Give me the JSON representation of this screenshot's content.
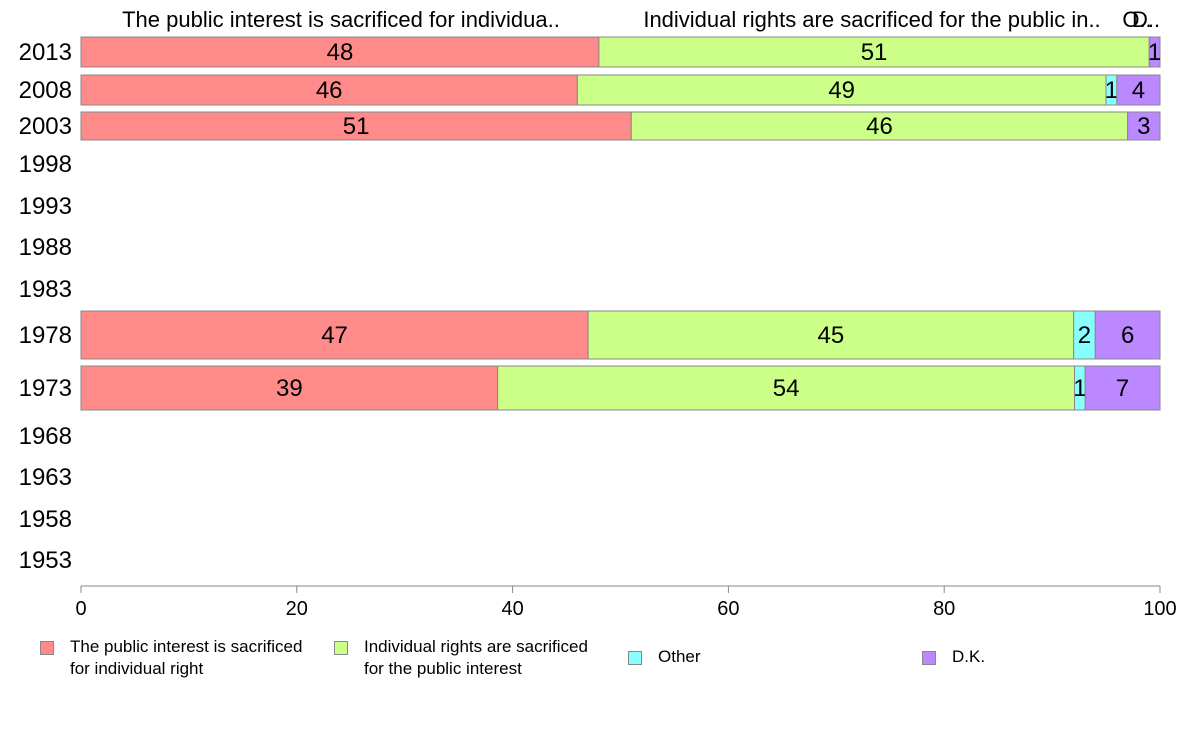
{
  "chart_data": {
    "type": "bar",
    "orientation": "horizontal",
    "stacked": true,
    "categories": [
      "2013",
      "2008",
      "2003",
      "1998",
      "1993",
      "1988",
      "1983",
      "1978",
      "1973",
      "1968",
      "1963",
      "1958",
      "1953"
    ],
    "series": [
      {
        "name": "The public interest is sacrificed for individual right",
        "top_label": "The public interest is sacrificed for individua..",
        "color": "#ff8a8a",
        "values": [
          48,
          46,
          51,
          null,
          null,
          null,
          null,
          47,
          39,
          null,
          null,
          null,
          null
        ]
      },
      {
        "name": "Individual rights are sacrificed for the public interest",
        "top_label": "Individual rights are sacrificed for the public in..",
        "color": "#ccff88",
        "values": [
          51,
          49,
          46,
          null,
          null,
          null,
          null,
          45,
          54,
          null,
          null,
          null,
          null
        ]
      },
      {
        "name": "Other",
        "top_label": "O..",
        "color": "#88ffff",
        "values": [
          0,
          1,
          0,
          null,
          null,
          null,
          null,
          2,
          1,
          null,
          null,
          null,
          null
        ]
      },
      {
        "name": "D.K.",
        "top_label": "D..",
        "color": "#bb88ff",
        "values": [
          1,
          4,
          3,
          null,
          null,
          null,
          null,
          6,
          7,
          null,
          null,
          null,
          null
        ]
      }
    ],
    "data_labels": [
      [
        "48",
        "51",
        "",
        "1"
      ],
      [
        "46",
        "49",
        "1",
        "4"
      ],
      [
        "51",
        "46",
        "",
        "3"
      ],
      null,
      null,
      null,
      null,
      [
        "47",
        "45",
        "2",
        "6"
      ],
      [
        "39",
        "54",
        "1",
        "7"
      ],
      null,
      null,
      null,
      null
    ],
    "xlim": [
      0,
      100
    ],
    "xticks": [
      "0",
      "20",
      "40",
      "60",
      "80",
      "100"
    ],
    "legend_position": "bottom",
    "grid": false
  },
  "legend": {
    "items": [
      {
        "label": "The public interest is sacrificed\nfor individual right",
        "color": "#ff8a8a"
      },
      {
        "label": "Individual rights are sacrificed\nfor the public interest",
        "color": "#ccff88"
      },
      {
        "label": "Other",
        "color": "#88ffff"
      },
      {
        "label": "D.K.",
        "color": "#bb88ff"
      }
    ]
  }
}
